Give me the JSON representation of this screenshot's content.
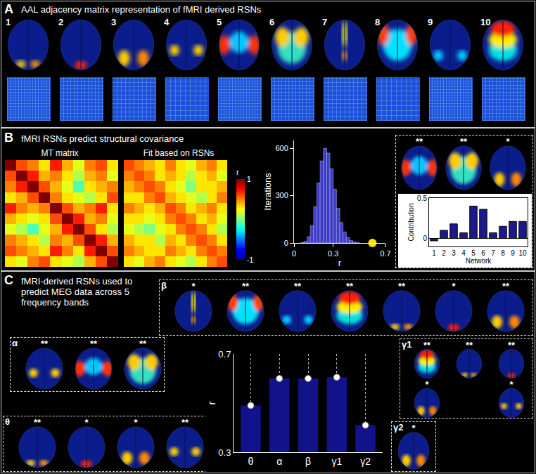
{
  "figure": {
    "panel_a": {
      "letter": "A",
      "title": "AAL adjacency matrix representation of fMRI derived RSNs",
      "networks": [
        "1",
        "2",
        "3",
        "4",
        "5",
        "6",
        "7",
        "8",
        "9",
        "10"
      ]
    },
    "panel_b": {
      "letter": "B",
      "title": "fMRI RSNs predict structural covariance",
      "network_stars": [
        "**",
        "**",
        "*"
      ]
    },
    "panel_c": {
      "letter": "C",
      "title": "fMRI-derived RSNs used to predict MEG data across 5 frequency bands",
      "groups": [
        {
          "label": "θ",
          "stars": [
            "**",
            "*",
            "*",
            "**"
          ]
        },
        {
          "label": "α",
          "stars": [
            "**",
            "**",
            "**"
          ]
        },
        {
          "label": "β",
          "stars": [
            "*",
            "**",
            "**",
            "**",
            "**",
            "*",
            "**"
          ]
        },
        {
          "label": "γ1",
          "stars": [
            "**",
            "**",
            "**",
            "*",
            "*"
          ]
        },
        {
          "label": "γ2",
          "stars": [
            "*"
          ]
        }
      ]
    }
  },
  "chart_data": [
    {
      "type": "heatmap",
      "title": "MT matrix",
      "zlim": [
        -1,
        1
      ],
      "tick_labels": false,
      "cells": [
        [
          1,
          0.6,
          0.5,
          0.3,
          0.7,
          0.4,
          0.2,
          0.5,
          0.6,
          0.3
        ],
        [
          0.6,
          1,
          0.7,
          0.4,
          0.5,
          0.3,
          0.1,
          0.4,
          0.5,
          0.2
        ],
        [
          0.5,
          0.7,
          1,
          0.6,
          0.4,
          0.2,
          -0.1,
          0.3,
          0.4,
          0.5
        ],
        [
          0.3,
          0.4,
          0.6,
          1,
          0.5,
          0.3,
          0.2,
          0.1,
          0.3,
          0.6
        ],
        [
          0.7,
          0.5,
          0.4,
          0.5,
          1,
          0.6,
          0.4,
          0.5,
          0.7,
          0.3
        ],
        [
          0.4,
          0.3,
          0.2,
          0.3,
          0.6,
          1,
          0.7,
          0.4,
          0.5,
          0.2
        ],
        [
          0.2,
          0.1,
          -0.1,
          0.2,
          0.4,
          0.7,
          1,
          0.6,
          0.3,
          0.1
        ],
        [
          0.5,
          0.4,
          0.3,
          0.1,
          0.5,
          0.4,
          0.6,
          1,
          0.7,
          0.4
        ],
        [
          0.6,
          0.5,
          0.4,
          0.3,
          0.7,
          0.5,
          0.3,
          0.7,
          1,
          0.6
        ],
        [
          0.3,
          0.2,
          0.5,
          0.6,
          0.3,
          0.2,
          0.1,
          0.4,
          0.6,
          1
        ]
      ]
    },
    {
      "type": "heatmap",
      "title": "Fit based on RSNs",
      "zlim": [
        -1,
        1
      ],
      "tick_labels": false,
      "colorbar_title": "r",
      "colorbar_range": [
        -1,
        1
      ],
      "colorbar_ticks": [
        -1,
        1
      ],
      "cells": [
        [
          0.6,
          0.5,
          0.4,
          0.3,
          0.5,
          0.3,
          0.2,
          0.4,
          0.5,
          0.3
        ],
        [
          0.5,
          0.6,
          0.5,
          0.3,
          0.4,
          0.3,
          0.1,
          0.3,
          0.4,
          0.2
        ],
        [
          0.4,
          0.5,
          0.6,
          0.5,
          0.3,
          0.2,
          0,
          0.3,
          0.3,
          0.4
        ],
        [
          0.3,
          0.3,
          0.5,
          0.6,
          0.4,
          0.3,
          0.2,
          0.1,
          0.3,
          0.5
        ],
        [
          0.5,
          0.4,
          0.3,
          0.4,
          0.6,
          0.5,
          0.3,
          0.4,
          0.5,
          0.3
        ],
        [
          0.3,
          0.3,
          0.2,
          0.3,
          0.5,
          0.6,
          0.5,
          0.3,
          0.4,
          0.2
        ],
        [
          0.2,
          0.1,
          0,
          0.2,
          0.3,
          0.5,
          0.6,
          0.5,
          0.3,
          0.1
        ],
        [
          0.4,
          0.3,
          0.3,
          0.1,
          0.4,
          0.3,
          0.5,
          0.6,
          0.5,
          0.3
        ],
        [
          0.5,
          0.4,
          0.3,
          0.3,
          0.5,
          0.4,
          0.3,
          0.5,
          0.6,
          0.5
        ],
        [
          0.3,
          0.2,
          0.4,
          0.5,
          0.3,
          0.2,
          0.1,
          0.3,
          0.5,
          0.6
        ]
      ]
    },
    {
      "type": "histogram",
      "x_label": "r",
      "y_label": "Iterations",
      "color": "#3c3cc8",
      "bins": [
        0.05,
        0.075,
        0.1,
        0.125,
        0.15,
        0.175,
        0.2,
        0.225,
        0.25,
        0.275,
        0.3,
        0.325,
        0.35,
        0.375,
        0.4,
        0.425,
        0.45,
        0.475,
        0.5
      ],
      "counts": [
        2,
        10,
        40,
        110,
        230,
        380,
        520,
        600,
        570,
        470,
        340,
        220,
        130,
        70,
        35,
        15,
        6,
        2
      ],
      "observed": {
        "x": 0.6,
        "color": "#ffe000",
        "marker": "circle"
      },
      "xlim": [
        0,
        0.7
      ],
      "xticks": [
        0,
        0.3,
        0.7
      ],
      "ylim": [
        0,
        650
      ],
      "yticks": [
        0,
        300,
        600
      ]
    },
    {
      "type": "bar",
      "x_label": "Network",
      "y_label": "Contribution",
      "color": "#1a1a8c",
      "x": [
        1,
        2,
        3,
        4,
        5,
        6,
        7,
        8,
        9,
        10
      ],
      "values": [
        -0.03,
        0.1,
        0.18,
        0.07,
        0.4,
        0.36,
        0.07,
        0.15,
        0.21,
        0.21
      ],
      "xlim": [
        0.5,
        10.5
      ],
      "xticks": [
        1,
        2,
        3,
        4,
        5,
        6,
        7,
        8,
        9,
        10
      ],
      "ylim": [
        -0.1,
        0.5
      ],
      "yticks": [
        0,
        0.5
      ]
    },
    {
      "type": "bar",
      "y_label": "r",
      "color": "#12128a",
      "marker": "circle",
      "grid": true,
      "categories": [
        "θ",
        "α",
        "β",
        "γ1",
        "γ2"
      ],
      "values": [
        0.49,
        0.6,
        0.6,
        0.605,
        0.41
      ],
      "ylim": [
        0.3,
        0.7
      ],
      "yticks": [
        0.3,
        0.7
      ]
    }
  ]
}
